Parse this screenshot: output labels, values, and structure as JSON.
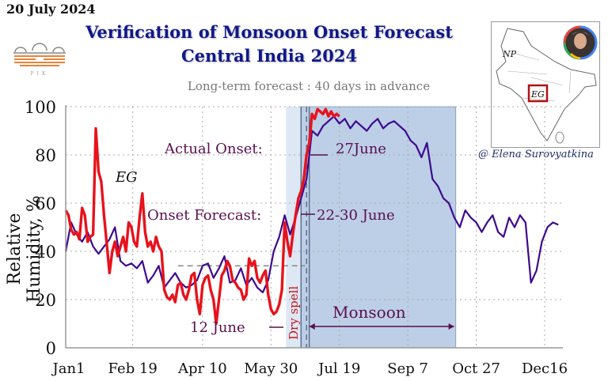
{
  "header": {
    "date": "20 July 2024",
    "title_line1": "Verification of Monsoon Onset Forecast",
    "title_line2": "Central India 2024",
    "subtitle": "Long-term forecast : 40 days in advance",
    "logo_text": "PIK",
    "credit": "@ Elena Surovyatkina"
  },
  "map": {
    "labels": [
      "NP",
      "EG"
    ],
    "icon": "india-map-with-region-box",
    "avatar": "author-photo"
  },
  "colors": {
    "observed": "#e8121c",
    "forecast": "#3e0a8e",
    "monsoon_band": "#bccfe6",
    "prior_band": "#dde8f4",
    "annotation": "#5a0f4f",
    "title": "#10188a"
  },
  "chart_data": {
    "type": "line",
    "title": "Verification of Monsoon Onset Forecast Central India 2024",
    "subtitle": "Long-term forecast : 40 days in advance",
    "xlabel": "",
    "ylabel": "Relative Humidity, %",
    "ylim": [
      0,
      100
    ],
    "xlim_days": [
      0,
      363
    ],
    "x_ticks": [
      {
        "day": 0,
        "label": "Jan1"
      },
      {
        "day": 49,
        "label": "Feb 19"
      },
      {
        "day": 100,
        "label": "Apr 10"
      },
      {
        "day": 150,
        "label": "May 30"
      },
      {
        "day": 200,
        "label": "Jul 19"
      },
      {
        "day": 250,
        "label": "Sep 7"
      },
      {
        "day": 300,
        "label": "Oct 27"
      },
      {
        "day": 350,
        "label": "Dec16"
      }
    ],
    "y_ticks": [
      0,
      20,
      40,
      60,
      80,
      100
    ],
    "grid": true,
    "threshold_line": {
      "value": 34,
      "from_day": 82,
      "to_day": 175
    },
    "regions": [
      {
        "name": "Dry spell",
        "from_day": 161,
        "to_day": 172
      },
      {
        "name": "Monsoon",
        "from_day": 172,
        "to_day": 285
      }
    ],
    "vertical_lines": [
      {
        "day": 172,
        "style": "solid"
      },
      {
        "day": 176,
        "style": "dashed"
      },
      {
        "day": 178,
        "style": "solid"
      }
    ],
    "series": [
      {
        "name": "Observed (EG)",
        "x": [
          0,
          2,
          4,
          6,
          8,
          10,
          12,
          14,
          16,
          18,
          20,
          22,
          24,
          26,
          28,
          30,
          32,
          34,
          36,
          38,
          40,
          42,
          44,
          46,
          48,
          50,
          52,
          54,
          56,
          58,
          60,
          62,
          64,
          66,
          68,
          70,
          72,
          74,
          76,
          78,
          80,
          82,
          84,
          86,
          88,
          90,
          92,
          94,
          96,
          98,
          100,
          102,
          104,
          106,
          108,
          110,
          112,
          114,
          116,
          118,
          120,
          122,
          124,
          126,
          128,
          130,
          132,
          134,
          136,
          138,
          140,
          142,
          144,
          146,
          148,
          150,
          152,
          154,
          156,
          158,
          160,
          162,
          164,
          166,
          168,
          170,
          172,
          174,
          176,
          178,
          180,
          182,
          184,
          186,
          188,
          190,
          192,
          194,
          196,
          198,
          200
        ],
        "values": [
          57,
          55,
          49,
          47,
          48,
          45,
          58,
          55,
          44,
          46,
          47,
          91,
          73,
          69,
          55,
          43,
          31,
          40,
          44,
          38,
          42,
          46,
          40,
          52,
          50,
          44,
          42,
          54,
          64,
          48,
          42,
          44,
          40,
          46,
          42,
          40,
          24,
          21,
          20,
          22,
          19,
          26,
          27,
          22,
          20,
          24,
          30,
          31,
          20,
          14,
          26,
          29,
          30,
          24,
          20,
          10,
          20,
          30,
          32,
          36,
          34,
          28,
          27,
          25,
          24,
          20,
          22,
          37,
          34,
          36,
          29,
          27,
          30,
          32,
          22,
          16,
          14,
          15,
          18,
          24,
          52,
          44,
          38,
          47,
          55,
          62,
          65,
          70,
          80,
          85,
          97,
          95,
          99,
          98,
          97,
          99,
          96,
          98,
          96,
          97,
          96
        ]
      },
      {
        "name": "Forecast",
        "x": [
          0,
          4,
          8,
          12,
          16,
          20,
          24,
          28,
          32,
          36,
          40,
          44,
          48,
          52,
          56,
          60,
          64,
          68,
          72,
          76,
          80,
          84,
          88,
          92,
          96,
          100,
          104,
          108,
          112,
          116,
          120,
          124,
          128,
          132,
          136,
          140,
          144,
          148,
          152,
          156,
          160,
          164,
          168,
          172,
          176,
          180,
          184,
          188,
          192,
          196,
          200,
          204,
          208,
          212,
          216,
          220,
          224,
          228,
          232,
          236,
          240,
          244,
          248,
          252,
          256,
          260,
          264,
          268,
          272,
          276,
          280,
          284,
          288,
          292,
          296,
          300,
          304,
          308,
          312,
          316,
          320,
          324,
          328,
          332,
          336,
          340,
          344,
          348,
          352,
          356,
          360
        ],
        "values": [
          40,
          52,
          47,
          44,
          48,
          42,
          39,
          42,
          45,
          50,
          36,
          34,
          35,
          33,
          36,
          27,
          30,
          34,
          25,
          28,
          31,
          27,
          25,
          26,
          28,
          34,
          35,
          29,
          33,
          38,
          27,
          28,
          33,
          26,
          29,
          25,
          23,
          28,
          40,
          46,
          55,
          47,
          54,
          62,
          70,
          90,
          88,
          92,
          94,
          96,
          93,
          95,
          91,
          94,
          92,
          90,
          93,
          95,
          91,
          93,
          94,
          92,
          90,
          86,
          84,
          79,
          85,
          70,
          67,
          62,
          60,
          54,
          50,
          57,
          54,
          52,
          48,
          52,
          55,
          48,
          46,
          54,
          50,
          55,
          52,
          27,
          32,
          44,
          50,
          52,
          51
        ]
      }
    ],
    "annotations": [
      {
        "text": "Actual Onset:",
        "value": "27June"
      },
      {
        "text": "Onset Forecast:",
        "value": "22-30 June"
      },
      {
        "text": "12 June",
        "arrow": "right"
      },
      {
        "text": "Dry spell",
        "orientation": "vertical"
      },
      {
        "text": "Monsoon",
        "arrow": "double"
      },
      {
        "text": "EG"
      }
    ]
  }
}
